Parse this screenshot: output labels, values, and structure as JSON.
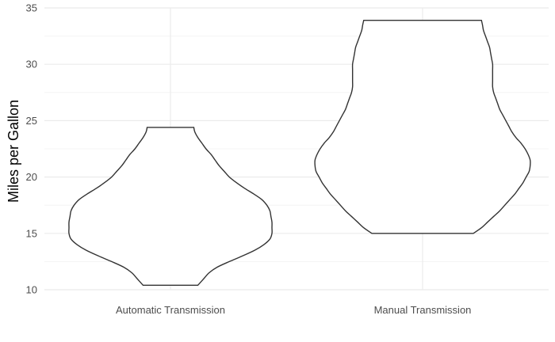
{
  "chart_data": {
    "type": "violin",
    "title": "",
    "xlabel": "",
    "ylabel": "Miles per Gallon",
    "ylim": [
      10,
      35
    ],
    "yticks": [
      10,
      15,
      20,
      25,
      30,
      35
    ],
    "grid": true,
    "categories": [
      "Automatic Transmission",
      "Manual Transmission"
    ],
    "series": [
      {
        "category": "Automatic Transmission",
        "min": 10.4,
        "max": 24.4,
        "profile": [
          [
            10.4,
            0.27
          ],
          [
            11.0,
            0.33
          ],
          [
            11.5,
            0.38
          ],
          [
            12.0,
            0.46
          ],
          [
            12.5,
            0.58
          ],
          [
            13.0,
            0.71
          ],
          [
            13.5,
            0.83
          ],
          [
            14.0,
            0.92
          ],
          [
            14.5,
            0.98
          ],
          [
            15.0,
            1.0
          ],
          [
            15.5,
            1.0
          ],
          [
            16.0,
            1.0
          ],
          [
            16.5,
            0.99
          ],
          [
            17.0,
            0.98
          ],
          [
            17.5,
            0.95
          ],
          [
            18.0,
            0.9
          ],
          [
            18.5,
            0.82
          ],
          [
            19.0,
            0.73
          ],
          [
            19.5,
            0.65
          ],
          [
            20.0,
            0.58
          ],
          [
            20.5,
            0.53
          ],
          [
            21.0,
            0.48
          ],
          [
            21.5,
            0.44
          ],
          [
            22.0,
            0.4
          ],
          [
            22.5,
            0.35
          ],
          [
            23.0,
            0.31
          ],
          [
            23.5,
            0.27
          ],
          [
            24.0,
            0.24
          ],
          [
            24.4,
            0.23
          ]
        ]
      },
      {
        "category": "Manual Transmission",
        "min": 15.0,
        "max": 33.9,
        "profile": [
          [
            15.0,
            0.5
          ],
          [
            15.5,
            0.58
          ],
          [
            16.0,
            0.64
          ],
          [
            16.5,
            0.7
          ],
          [
            17.0,
            0.76
          ],
          [
            17.5,
            0.81
          ],
          [
            18.0,
            0.86
          ],
          [
            18.5,
            0.91
          ],
          [
            19.0,
            0.95
          ],
          [
            19.5,
            0.99
          ],
          [
            20.0,
            1.02
          ],
          [
            20.5,
            1.05
          ],
          [
            21.0,
            1.06
          ],
          [
            21.5,
            1.06
          ],
          [
            22.0,
            1.04
          ],
          [
            22.5,
            1.01
          ],
          [
            23.0,
            0.97
          ],
          [
            23.5,
            0.92
          ],
          [
            24.0,
            0.88
          ],
          [
            24.5,
            0.85
          ],
          [
            25.0,
            0.82
          ],
          [
            25.5,
            0.79
          ],
          [
            26.0,
            0.76
          ],
          [
            26.5,
            0.74
          ],
          [
            27.0,
            0.72
          ],
          [
            27.5,
            0.7
          ],
          [
            28.0,
            0.69
          ],
          [
            28.5,
            0.69
          ],
          [
            29.0,
            0.69
          ],
          [
            29.5,
            0.69
          ],
          [
            30.0,
            0.69
          ],
          [
            30.5,
            0.68
          ],
          [
            31.0,
            0.67
          ],
          [
            31.5,
            0.66
          ],
          [
            32.0,
            0.64
          ],
          [
            32.5,
            0.62
          ],
          [
            33.0,
            0.6
          ],
          [
            33.5,
            0.59
          ],
          [
            33.9,
            0.58
          ]
        ]
      }
    ]
  }
}
